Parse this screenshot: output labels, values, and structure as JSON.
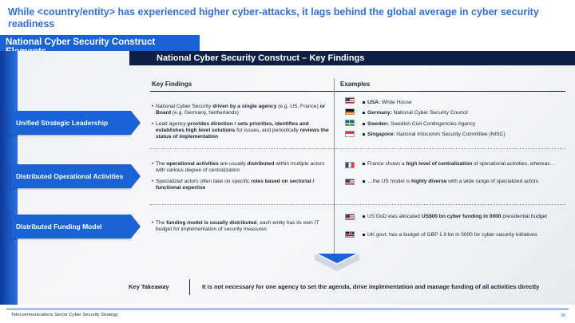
{
  "title": "While <country/entity> has experienced higher cyber-attacks, it lags behind the global average in cyber security readiness",
  "section_tab": "National Cyber Security Construct Elements",
  "band_title": "National Cyber Security Construct – Key Findings",
  "columns": {
    "findings": "Key Findings",
    "examples": "Examples"
  },
  "rows": [
    {
      "label": "Unified Strategic Leadership",
      "findings": [
        [
          {
            "t": "National Cyber Security "
          },
          {
            "t": "driven by a single agency",
            "b": true
          },
          {
            "t": " (e.g. US, France) "
          },
          {
            "t": "or Board",
            "b": true
          },
          {
            "t": " (e.g. Germany, Netherlands)"
          }
        ],
        [
          {
            "t": "Lead agency "
          },
          {
            "t": "provides direction / sets priorities, identifies and establishes high level solutions",
            "b": true
          },
          {
            "t": " for issues, and periodically "
          },
          {
            "t": "reviews the status of implementation",
            "b": true
          }
        ]
      ],
      "examples": [
        {
          "flag": "us-flag",
          "parts": [
            {
              "t": "USA:",
              "b": true
            },
            {
              "t": " White House"
            }
          ]
        },
        {
          "flag": "germany-flag",
          "parts": [
            {
              "t": "Germany:",
              "b": true
            },
            {
              "t": " National Cyber Security Council"
            }
          ]
        },
        {
          "flag": "sweden-flag",
          "parts": [
            {
              "t": "Sweden:",
              "b": true
            },
            {
              "t": " Swedish Civil Contingencies Agency"
            }
          ]
        },
        {
          "flag": "singapore-flag",
          "parts": [
            {
              "t": "Singapore:",
              "b": true
            },
            {
              "t": " National Infocomm Security Committee (NISC)"
            }
          ]
        }
      ]
    },
    {
      "label": "Distributed Operational Activities",
      "findings": [
        [
          {
            "t": "The "
          },
          {
            "t": "operational activities",
            "b": true
          },
          {
            "t": " are usually "
          },
          {
            "t": "distributed",
            "b": true
          },
          {
            "t": " within multiple actors with various degree of centralization"
          }
        ],
        [
          {
            "t": "Specialized actors often take on specific "
          },
          {
            "t": "roles based on sectorial / functional expertise",
            "b": true
          }
        ]
      ],
      "examples": [
        {
          "flag": "france-flag",
          "parts": [
            {
              "t": "France shows a "
            },
            {
              "t": "high level of centralization",
              "b": true
            },
            {
              "t": " of operational activities, whereas…"
            }
          ]
        },
        {
          "flag": "us-flag",
          "parts": [
            {
              "t": "…the US model is "
            },
            {
              "t": "highly diverse",
              "b": true
            },
            {
              "t": " with a wide range of specialized actors"
            }
          ]
        }
      ]
    },
    {
      "label": "Distributed Funding Model",
      "findings": [
        [
          {
            "t": "The "
          },
          {
            "t": "funding model is usually distributed",
            "b": true
          },
          {
            "t": ", each entity has its own IT budget for implementation of security measures"
          }
        ]
      ],
      "examples": [
        {
          "flag": "us-flag",
          "parts": [
            {
              "t": "US DoD was allocated "
            },
            {
              "t": "US$00 bn cyber funding in 0000",
              "b": true
            },
            {
              "t": " presidential budget"
            }
          ]
        },
        {
          "flag": "uk-flag",
          "parts": [
            {
              "t": "UK govt. has a budget of GBP 1.9 bn in 0000 for cyber security initiatives"
            }
          ]
        }
      ]
    }
  ],
  "takeaway": {
    "label": "Key Takeaway",
    "text": "It is not necessary for one agency to set the agenda, drive implementation and manage funding of all activities directly"
  },
  "footer": "Telecommunications Sector Cyber Security Strategy",
  "page_number": "38",
  "colors": {
    "accent": "#1a63d6",
    "title": "#2f6fd6",
    "band": "#0d1f44"
  }
}
